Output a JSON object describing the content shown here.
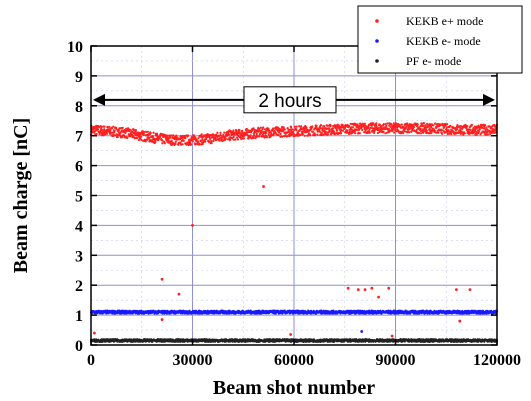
{
  "chart_data": {
    "type": "scatter",
    "xlabel": "Beam shot number",
    "ylabel": "Beam charge [nC]",
    "xlim": [
      0,
      120000
    ],
    "ylim": [
      0,
      10
    ],
    "x_ticks": [
      0,
      30000,
      60000,
      90000,
      120000
    ],
    "y_ticks": [
      0,
      1,
      2,
      3,
      4,
      5,
      6,
      7,
      8,
      9,
      10
    ],
    "grid": true,
    "legend_position": "top-right",
    "annotation": {
      "text": "2 hours",
      "x_range": [
        0,
        120000
      ],
      "y": 8.2
    },
    "series": [
      {
        "name": "KEKB e+ mode",
        "color": "#ff2020",
        "band": {
          "x": [
            0,
            5000,
            10000,
            15000,
            20000,
            25000,
            30000,
            35000,
            40000,
            45000,
            50000,
            60000,
            70000,
            80000,
            90000,
            100000,
            110000,
            120000
          ],
          "y": [
            7.2,
            7.15,
            7.1,
            7.0,
            6.9,
            6.85,
            6.85,
            6.9,
            7.0,
            7.05,
            7.1,
            7.15,
            7.2,
            7.25,
            7.25,
            7.25,
            7.2,
            7.2
          ]
        },
        "outliers": [
          {
            "x": 1000,
            "y": 0.4
          },
          {
            "x": 21000,
            "y": 2.2
          },
          {
            "x": 21000,
            "y": 0.85
          },
          {
            "x": 26000,
            "y": 1.7
          },
          {
            "x": 30000,
            "y": 4.0
          },
          {
            "x": 51000,
            "y": 5.3
          },
          {
            "x": 59000,
            "y": 0.35
          },
          {
            "x": 76000,
            "y": 1.9
          },
          {
            "x": 79000,
            "y": 1.85
          },
          {
            "x": 81000,
            "y": 1.85
          },
          {
            "x": 83000,
            "y": 1.9
          },
          {
            "x": 85000,
            "y": 1.6
          },
          {
            "x": 88000,
            "y": 1.9
          },
          {
            "x": 89000,
            "y": 0.3
          },
          {
            "x": 108000,
            "y": 1.85
          },
          {
            "x": 112000,
            "y": 1.85
          },
          {
            "x": 109000,
            "y": 0.8
          }
        ]
      },
      {
        "name": "KEKB e- mode",
        "color": "#1a1aff",
        "band": {
          "x": [
            0,
            30000,
            60000,
            90000,
            120000
          ],
          "y": [
            1.1,
            1.1,
            1.1,
            1.1,
            1.1
          ]
        },
        "outliers": [
          {
            "x": 80000,
            "y": 0.45
          }
        ]
      },
      {
        "name": "PF e- mode",
        "color": "#222222",
        "band": {
          "x": [
            0,
            30000,
            60000,
            90000,
            120000
          ],
          "y": [
            0.15,
            0.15,
            0.15,
            0.15,
            0.15
          ]
        },
        "outliers": []
      }
    ]
  }
}
